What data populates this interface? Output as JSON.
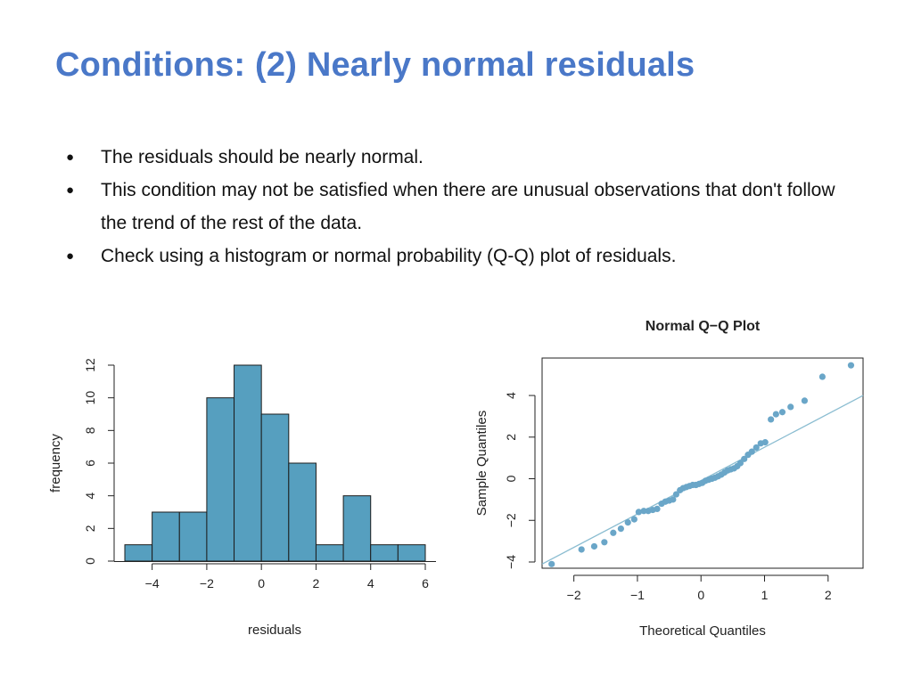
{
  "slide": {
    "title": "Conditions: (2) Nearly normal residuals",
    "bullets": [
      "The residuals should be nearly normal.",
      "This condition may not be satisfied when there are unusual observations that don't follow the trend of the rest of the data.",
      "Check using a histogram or normal probability (Q-Q) plot of residuals."
    ]
  },
  "colors": {
    "title": "#4a78c8",
    "bar": "#569fbf",
    "point": "#6aa6c8",
    "line": "#8bbdd1"
  },
  "chart_data": [
    {
      "type": "bar",
      "xlabel": "residuals",
      "ylabel": "frequency",
      "bins": [
        {
          "x0": -5,
          "x1": -4,
          "count": 1
        },
        {
          "x0": -4,
          "x1": -3,
          "count": 3
        },
        {
          "x0": -3,
          "x1": -2,
          "count": 3
        },
        {
          "x0": -2,
          "x1": -1,
          "count": 10
        },
        {
          "x0": -1,
          "x1": 0,
          "count": 12
        },
        {
          "x0": 0,
          "x1": 1,
          "count": 9
        },
        {
          "x0": 1,
          "x1": 2,
          "count": 6
        },
        {
          "x0": 2,
          "x1": 3,
          "count": 1
        },
        {
          "x0": 3,
          "x1": 4,
          "count": 4
        },
        {
          "x0": 4,
          "x1": 5,
          "count": 1
        },
        {
          "x0": 5,
          "x1": 6,
          "count": 1
        }
      ],
      "xticks": [
        -4,
        -2,
        0,
        2,
        4,
        6
      ],
      "xtick_labels": [
        "−4",
        "−2",
        "0",
        "2",
        "4",
        "6"
      ],
      "yticks": [
        0,
        2,
        4,
        6,
        8,
        10,
        12
      ],
      "ytick_labels": [
        "0",
        "2",
        "4",
        "6",
        "8",
        "10",
        "12"
      ],
      "xlim": [
        -5,
        6
      ],
      "ylim": [
        0,
        12
      ]
    },
    {
      "type": "scatter",
      "title": "Normal Q−Q Plot",
      "xlabel": "Theoretical Quantiles",
      "ylabel": "Sample Quantiles",
      "xlim": [
        -2.5,
        2.55
      ],
      "ylim": [
        -4.3,
        5.8
      ],
      "xticks": [
        -2,
        -1,
        0,
        1,
        2
      ],
      "xtick_labels": [
        "−2",
        "−1",
        "0",
        "1",
        "2"
      ],
      "yticks": [
        -4,
        -2,
        0,
        2,
        4
      ],
      "ytick_labels": [
        "−4",
        "−2",
        "0",
        "2",
        "4"
      ],
      "reference_line": {
        "x1": -2.5,
        "y1": -4.1,
        "x2": 2.55,
        "y2": 4.0
      },
      "points": [
        [
          -2.35,
          -4.1
        ],
        [
          -1.88,
          -3.4
        ],
        [
          -1.68,
          -3.25
        ],
        [
          -1.52,
          -3.05
        ],
        [
          -1.38,
          -2.6
        ],
        [
          -1.26,
          -2.4
        ],
        [
          -1.15,
          -2.1
        ],
        [
          -1.05,
          -1.95
        ],
        [
          -0.98,
          -1.6
        ],
        [
          -0.9,
          -1.55
        ],
        [
          -0.83,
          -1.55
        ],
        [
          -0.76,
          -1.5
        ],
        [
          -0.69,
          -1.45
        ],
        [
          -0.62,
          -1.2
        ],
        [
          -0.56,
          -1.1
        ],
        [
          -0.5,
          -1.05
        ],
        [
          -0.44,
          -1.0
        ],
        [
          -0.39,
          -0.75
        ],
        [
          -0.33,
          -0.55
        ],
        [
          -0.28,
          -0.45
        ],
        [
          -0.23,
          -0.4
        ],
        [
          -0.18,
          -0.35
        ],
        [
          -0.13,
          -0.3
        ],
        [
          -0.08,
          -0.3
        ],
        [
          -0.03,
          -0.25
        ],
        [
          0.02,
          -0.2
        ],
        [
          0.07,
          -0.1
        ],
        [
          0.12,
          -0.05
        ],
        [
          0.17,
          0.0
        ],
        [
          0.22,
          0.05
        ],
        [
          0.27,
          0.12
        ],
        [
          0.32,
          0.2
        ],
        [
          0.37,
          0.3
        ],
        [
          0.42,
          0.4
        ],
        [
          0.47,
          0.45
        ],
        [
          0.52,
          0.5
        ],
        [
          0.57,
          0.6
        ],
        [
          0.62,
          0.75
        ],
        [
          0.68,
          0.95
        ],
        [
          0.74,
          1.15
        ],
        [
          0.8,
          1.3
        ],
        [
          0.87,
          1.5
        ],
        [
          0.94,
          1.7
        ],
        [
          1.01,
          1.75
        ],
        [
          1.1,
          2.85
        ],
        [
          1.18,
          3.1
        ],
        [
          1.28,
          3.2
        ],
        [
          1.41,
          3.45
        ],
        [
          1.63,
          3.75
        ],
        [
          1.91,
          4.9
        ],
        [
          2.36,
          5.45
        ]
      ]
    }
  ]
}
